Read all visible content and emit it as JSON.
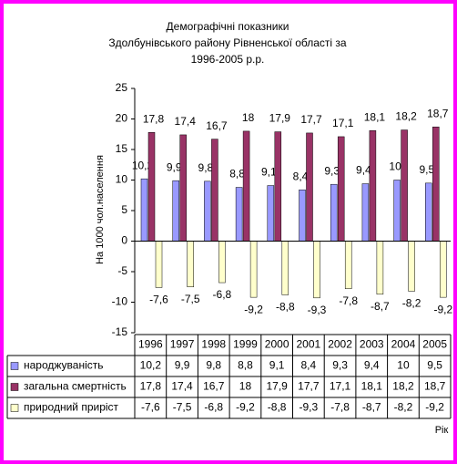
{
  "chart_data": {
    "type": "bar",
    "title": [
      "Демографічні показники",
      "Здолбунівського району Рівненської області за",
      "1996-2005 р.р."
    ],
    "y_label": "На 1000 чол.населення",
    "x_label": "Рік",
    "categories": [
      "1996",
      "1997",
      "1998",
      "1999",
      "2000",
      "2001",
      "2002",
      "2003",
      "2004",
      "2005"
    ],
    "series": [
      {
        "name": "народжуваність",
        "color": "#9999ff",
        "values": [
          10.2,
          9.9,
          9.8,
          8.8,
          9.1,
          8.4,
          9.3,
          9.4,
          10,
          9.5
        ],
        "value_labels": [
          "10,2",
          "9,9",
          "9,8",
          "8,8",
          "9,1",
          "8,4",
          "9,3",
          "9,4",
          "10",
          "9,5"
        ]
      },
      {
        "name": "загальна смертність",
        "color": "#993366",
        "values": [
          17.8,
          17.4,
          16.7,
          18,
          17.9,
          17.7,
          17.1,
          18.1,
          18.2,
          18.7
        ],
        "value_labels": [
          "17,8",
          "17,4",
          "16,7",
          "18",
          "17,9",
          "17,7",
          "17,1",
          "18,1",
          "18,2",
          "18,7"
        ]
      },
      {
        "name": "природний приріст",
        "color": "#ffffcc",
        "values": [
          -7.6,
          -7.5,
          -6.8,
          -9.2,
          -8.8,
          -9.3,
          -7.8,
          -8.7,
          -8.2,
          -9.2
        ],
        "value_labels": [
          "-7,6",
          "-7,5",
          "-6,8",
          "-9,2",
          "-8,8",
          "-9,3",
          "-7,8",
          "-8,7",
          "-8,2",
          "-9,2"
        ]
      }
    ],
    "ylim": [
      -15,
      25
    ],
    "yticks": [
      -15,
      -10,
      -5,
      0,
      5,
      10,
      15,
      20,
      25
    ],
    "grid": false
  }
}
